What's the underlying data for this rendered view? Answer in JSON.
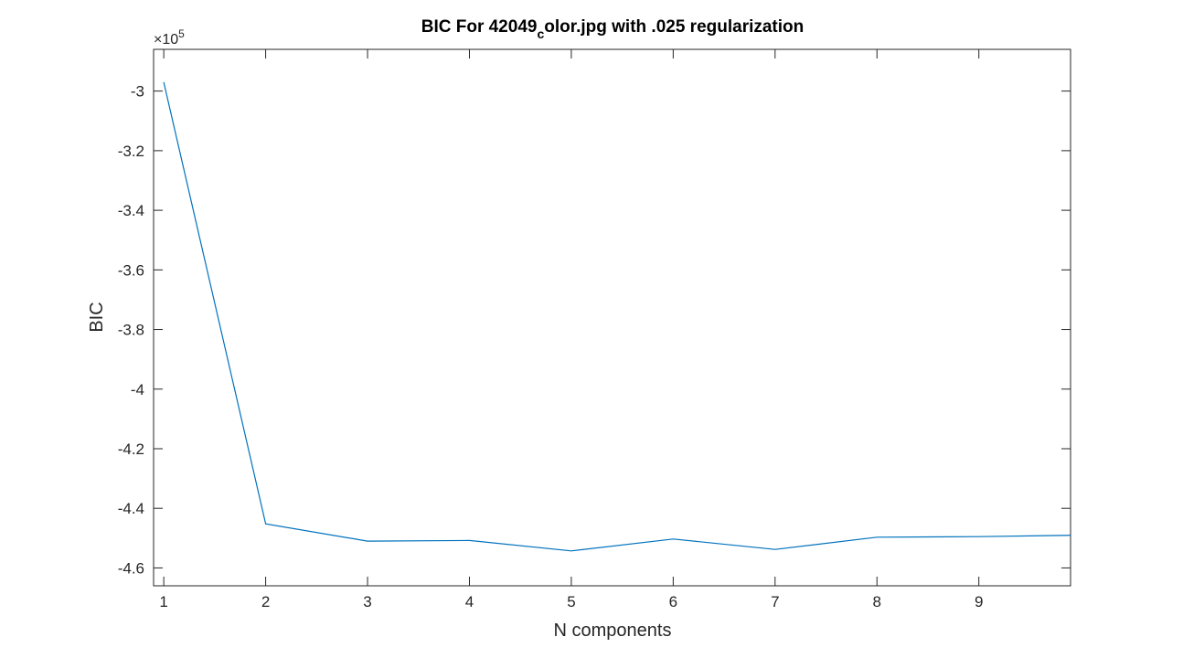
{
  "chart_data": {
    "type": "line",
    "title": {
      "main": "BIC For 42049",
      "subscript": "c",
      "rest": "olor.jpg with .025 regularization"
    },
    "xlabel": "N components",
    "ylabel": "BIC",
    "y_exponent": {
      "base": "×10",
      "power": "5"
    },
    "xlim": [
      0.9,
      9.9
    ],
    "ylim": [
      -4.66,
      -2.86
    ],
    "x_ticks": [
      1,
      2,
      3,
      4,
      5,
      6,
      7,
      8,
      9
    ],
    "x_tick_labels": [
      "1",
      "2",
      "3",
      "4",
      "5",
      "6",
      "7",
      "8",
      "9"
    ],
    "y_ticks": [
      -4.6,
      -4.4,
      -4.2,
      -4.0,
      -3.8,
      -3.6,
      -3.4,
      -3.2,
      -3.0
    ],
    "y_tick_labels": [
      "-4.6",
      "-4.4",
      "-4.2",
      "-4",
      "-3.8",
      "-3.6",
      "-3.4",
      "-3.2",
      "-3"
    ],
    "grid": false,
    "series": [
      {
        "color": "#0072bd",
        "x": [
          1,
          2,
          3,
          4,
          5,
          6,
          7,
          8,
          9,
          10
        ],
        "y": [
          -2.97,
          -4.452,
          -4.51,
          -4.508,
          -4.543,
          -4.503,
          -4.538,
          -4.497,
          -4.495,
          -4.49
        ]
      }
    ]
  }
}
